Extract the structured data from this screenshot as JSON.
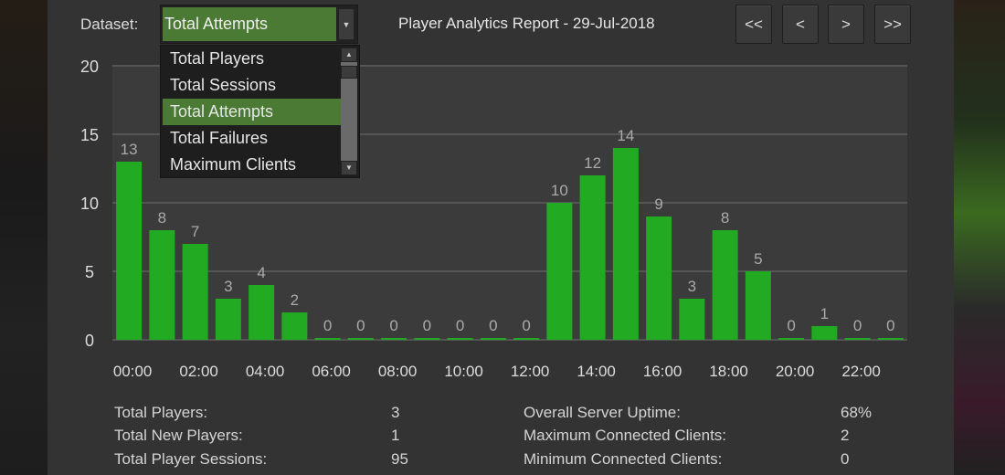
{
  "header": {
    "dataset_label": "Dataset:",
    "dataset_selected": "Total Attempts",
    "dataset_options": [
      "Total Players",
      "Total Sessions",
      "Total Attempts",
      "Total Failures",
      "Maximum Clients"
    ],
    "report_title": "Player Analytics Report - 29-Jul-2018",
    "nav": {
      "first": "<<",
      "prev": "<",
      "next": ">",
      "last": ">>"
    }
  },
  "chart_data": {
    "type": "bar",
    "categories": [
      "00:00",
      "01:00",
      "02:00",
      "03:00",
      "04:00",
      "05:00",
      "06:00",
      "07:00",
      "08:00",
      "09:00",
      "10:00",
      "11:00",
      "12:00",
      "13:00",
      "14:00",
      "15:00",
      "16:00",
      "17:00",
      "18:00",
      "19:00",
      "20:00",
      "21:00",
      "22:00",
      "23:00"
    ],
    "x_tick_labels": [
      "00:00",
      "02:00",
      "04:00",
      "06:00",
      "08:00",
      "10:00",
      "12:00",
      "14:00",
      "16:00",
      "18:00",
      "20:00",
      "22:00"
    ],
    "values": [
      13,
      8,
      7,
      3,
      4,
      2,
      0,
      0,
      0,
      0,
      0,
      0,
      0,
      10,
      12,
      14,
      9,
      3,
      8,
      5,
      0,
      1,
      0,
      0
    ],
    "ylim": [
      0,
      20
    ],
    "y_ticks": [
      0,
      5,
      10,
      15,
      20
    ],
    "grid": true,
    "bar_color": "#22aa22"
  },
  "stats": {
    "left": [
      {
        "label": "Total Players:",
        "value": "3"
      },
      {
        "label": "Total New Players:",
        "value": "1"
      },
      {
        "label": "Total Player Sessions:",
        "value": "95"
      }
    ],
    "right": [
      {
        "label": "Overall Server Uptime:",
        "value": "68%"
      },
      {
        "label": "Maximum Connected Clients:",
        "value": "2"
      },
      {
        "label": "Minimum Connected Clients:",
        "value": "0"
      }
    ]
  }
}
